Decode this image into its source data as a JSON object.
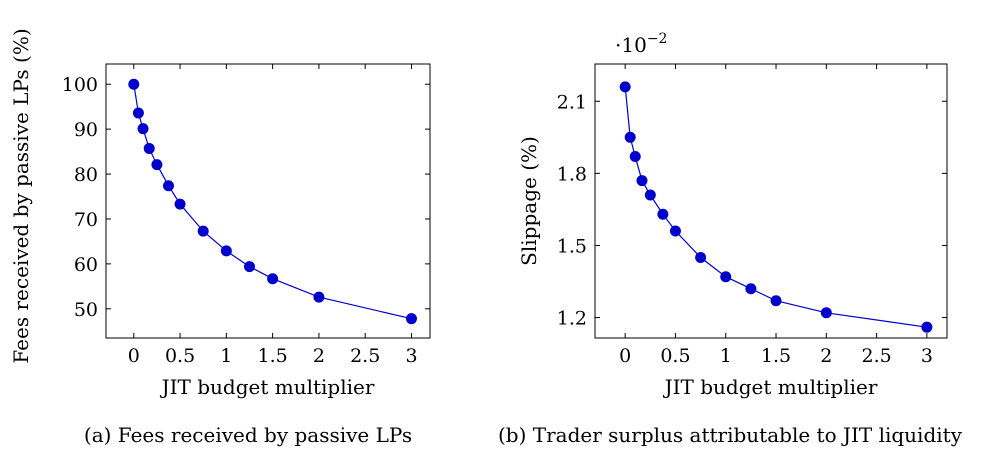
{
  "chart_data": [
    {
      "type": "line",
      "xlabel": "JIT budget multiplier",
      "ylabel": "Fees received by passive LPs (%)",
      "caption": "(a) Fees received by passive LPs",
      "xlim": [
        -0.3,
        3.2
      ],
      "ylim": [
        43.5,
        104.5
      ],
      "xticks": [
        0,
        0.5,
        1,
        1.5,
        2,
        2.5,
        3
      ],
      "xtick_labels": [
        "0",
        "0.5",
        "1",
        "1.5",
        "2",
        "2.5",
        "3"
      ],
      "yticks": [
        50,
        60,
        70,
        80,
        90,
        100
      ],
      "ytick_labels": [
        "50",
        "60",
        "70",
        "80",
        "90",
        "100"
      ],
      "grid": false,
      "series": [
        {
          "color": "#0000cc",
          "x": [
            0,
            0.05,
            0.1,
            0.167,
            0.25,
            0.375,
            0.5,
            0.75,
            1,
            1.25,
            1.5,
            2,
            3
          ],
          "y": [
            100.0,
            93.6,
            90.1,
            85.7,
            82.1,
            77.4,
            73.3,
            67.3,
            62.9,
            59.4,
            56.7,
            52.6,
            47.8
          ]
        }
      ]
    },
    {
      "type": "line",
      "xlabel": "JIT budget multiplier",
      "ylabel": "Slippage (%)",
      "caption": "(b) Trader surplus attributable to JIT liquidity",
      "scale_label_base": "·10",
      "scale_label_exp": "−2",
      "xlim": [
        -0.3,
        3.2
      ],
      "ylim": [
        1.115,
        2.255
      ],
      "xticks": [
        0,
        0.5,
        1,
        1.5,
        2,
        2.5,
        3
      ],
      "xtick_labels": [
        "0",
        "0.5",
        "1",
        "1.5",
        "2",
        "2.5",
        "3"
      ],
      "yticks": [
        1.2,
        1.5,
        1.8,
        2.1
      ],
      "ytick_labels": [
        "1.2",
        "1.5",
        "1.8",
        "2.1"
      ],
      "grid": false,
      "series": [
        {
          "color": "#0000cc",
          "x": [
            0,
            0.05,
            0.1,
            0.167,
            0.25,
            0.375,
            0.5,
            0.75,
            1,
            1.25,
            1.5,
            2,
            3
          ],
          "y": [
            2.16,
            1.95,
            1.87,
            1.77,
            1.71,
            1.63,
            1.56,
            1.45,
            1.37,
            1.32,
            1.27,
            1.22,
            1.16
          ]
        }
      ]
    }
  ]
}
